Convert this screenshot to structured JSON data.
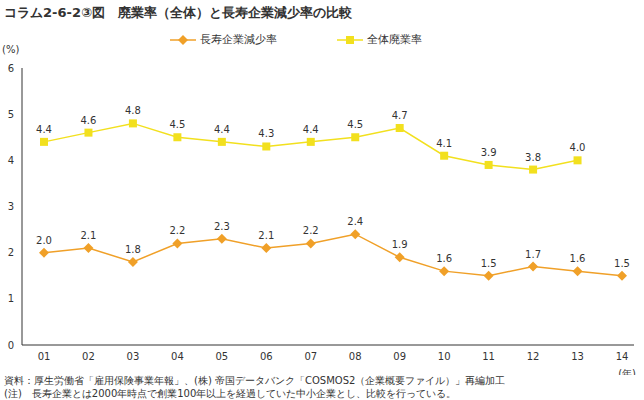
{
  "chart_data": {
    "type": "line",
    "title": "コラム2-6-2③図　廃業率（全体）と長寿企業減少率の比較",
    "y_label": "(%)",
    "x_label": "(年)",
    "categories": [
      "01",
      "02",
      "03",
      "04",
      "05",
      "06",
      "07",
      "08",
      "09",
      "10",
      "11",
      "12",
      "13",
      "14"
    ],
    "series": [
      {
        "name": "長寿企業減少率",
        "color": "#f0a028",
        "marker": "diamond",
        "values": [
          2.0,
          2.1,
          1.8,
          2.2,
          2.3,
          2.1,
          2.2,
          2.4,
          1.9,
          1.6,
          1.5,
          1.7,
          1.6,
          1.5
        ],
        "value_labels": [
          "2.0",
          "2.1",
          "1.8",
          "2.2",
          "2.3",
          "2.1",
          "2.2",
          "2.4",
          "1.9",
          "1.6",
          "1.5",
          "1.7",
          "1.6",
          "1.5"
        ]
      },
      {
        "name": "全体廃業率",
        "color": "#f2e01e",
        "marker": "square",
        "values": [
          4.4,
          4.6,
          4.8,
          4.5,
          4.4,
          4.3,
          4.4,
          4.5,
          4.7,
          4.1,
          3.9,
          3.8,
          4.0,
          null
        ],
        "value_labels": [
          "4.4",
          "4.6",
          "4.8",
          "4.5",
          "4.4",
          "4.3",
          "4.4",
          "4.5",
          "4.7",
          "4.1",
          "3.9",
          "3.8",
          "4.0",
          null
        ]
      }
    ],
    "ylim": [
      0,
      6
    ],
    "yticks": [
      0,
      1,
      2,
      3,
      4,
      5,
      6
    ],
    "grid": false,
    "data_labels": true,
    "legend": "top",
    "source": "資料：厚生労働省「雇用保険事業年報」、(株) 帝国データバンク「COSMOS2（企業概要ファイル）」再編加工",
    "note": "(注)　長寿企業とは2000年時点で創業100年以上を経過していた中小企業とし、比較を行っている。"
  }
}
